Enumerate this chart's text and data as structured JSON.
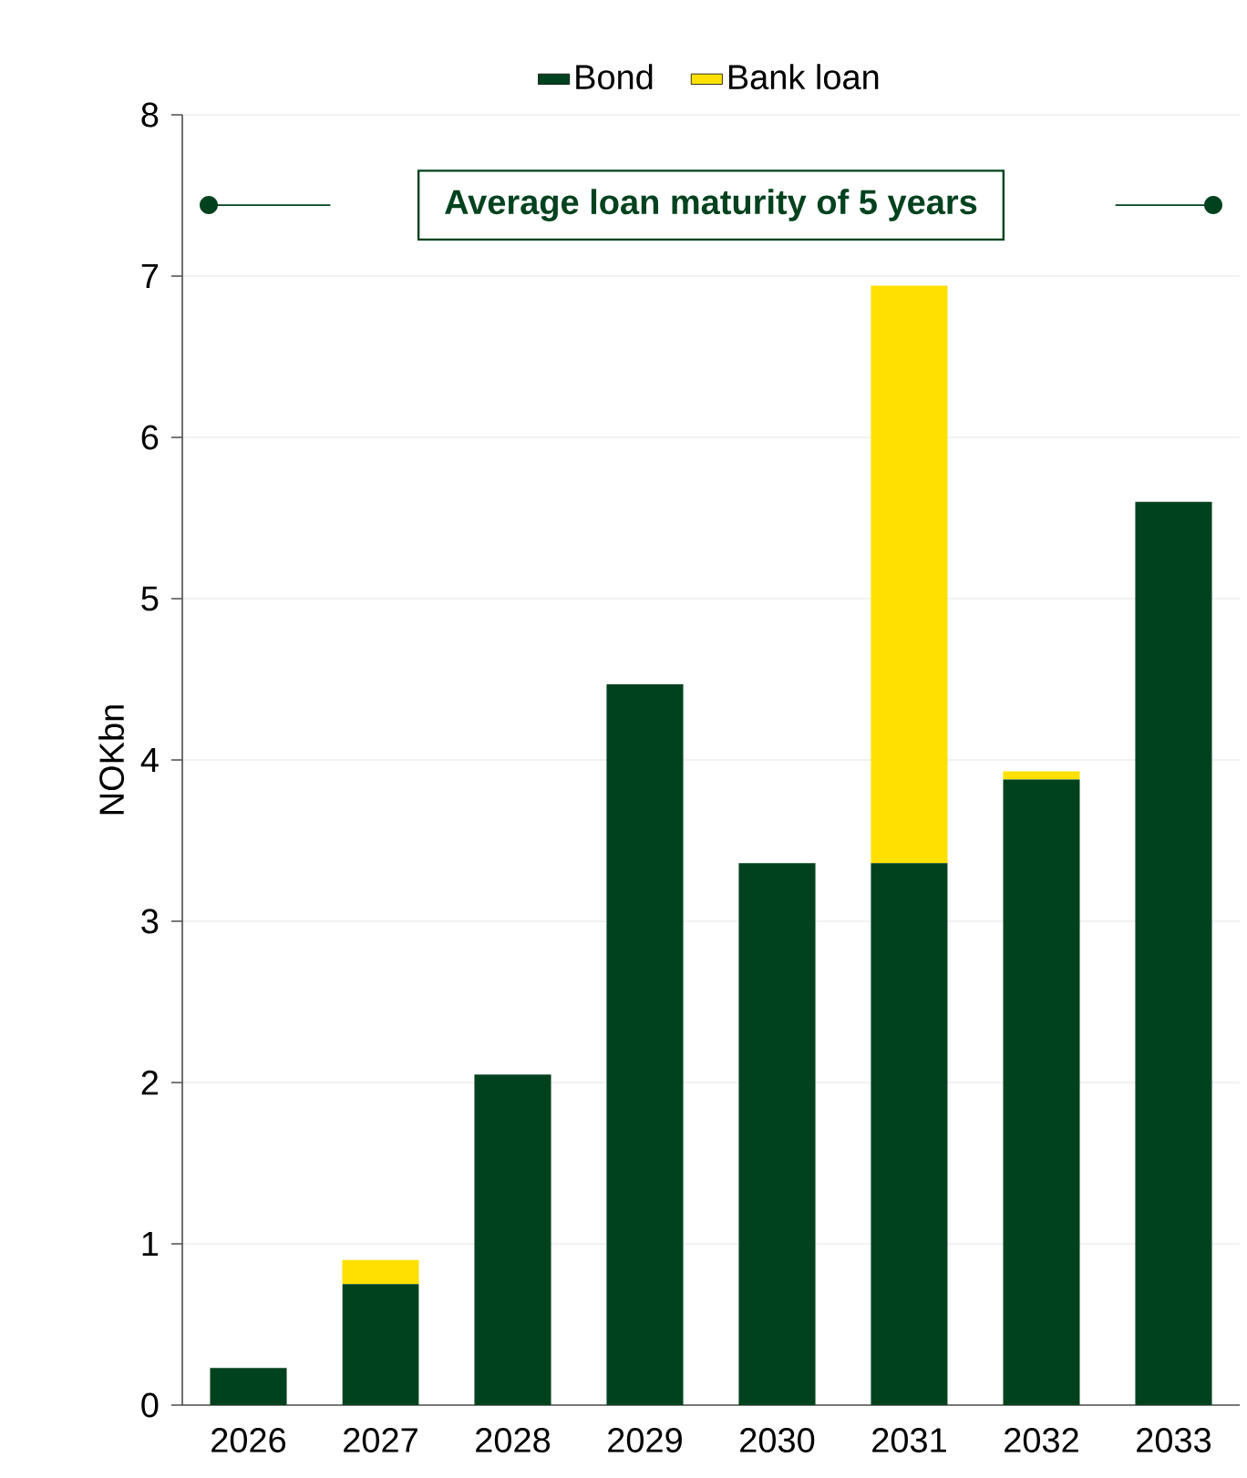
{
  "chart_data": {
    "type": "bar",
    "stacked": true,
    "ylabel": "NOKbn",
    "categories": [
      "2026",
      "2027",
      "2028",
      "2029",
      "2030",
      "2031",
      "2032",
      "2033"
    ],
    "series": [
      {
        "name": "Bond",
        "color": "#00421e",
        "values": [
          0.23,
          0.75,
          2.05,
          4.47,
          3.36,
          3.36,
          3.88,
          5.6
        ]
      },
      {
        "name": "Bank loan",
        "color": "#ffe000",
        "values": [
          null,
          0.15,
          null,
          null,
          null,
          3.58,
          0.05,
          null
        ]
      }
    ],
    "ylim": [
      0,
      8
    ],
    "yticks": [
      0,
      1,
      2,
      3,
      4,
      5,
      6,
      7,
      8
    ],
    "grid": "y",
    "legend": "top",
    "annotations": [
      "Average loan maturity of 5 years"
    ]
  }
}
